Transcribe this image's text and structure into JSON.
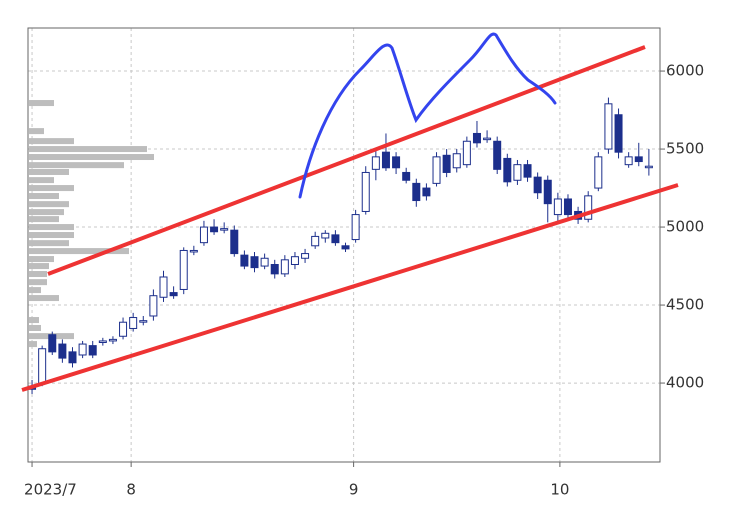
{
  "chart_data": {
    "type": "candlestick",
    "x": [
      0,
      1,
      2,
      3,
      4,
      5,
      6,
      7,
      8,
      9,
      10,
      11,
      12,
      13,
      14,
      15,
      16,
      17,
      18,
      19,
      20,
      21,
      22,
      23,
      24,
      25,
      26,
      27,
      28,
      29,
      30,
      31,
      32,
      33,
      34,
      35,
      36,
      37,
      38,
      39,
      40,
      41,
      42,
      43,
      44,
      45,
      46,
      47,
      48,
      49,
      50,
      51,
      52,
      53,
      54,
      55,
      56,
      57,
      58,
      59,
      60,
      61
    ],
    "open": [
      3980,
      4000,
      4310,
      4250,
      4200,
      4180,
      4240,
      4260,
      4270,
      4300,
      4350,
      4400,
      4430,
      4550,
      4580,
      4600,
      4850,
      4900,
      5000,
      4990,
      4980,
      4820,
      4810,
      4750,
      4760,
      4700,
      4760,
      4800,
      4880,
      4930,
      4950,
      4880,
      4920,
      5100,
      5370,
      5480,
      5450,
      5350,
      5280,
      5250,
      5280,
      5460,
      5380,
      5400,
      5600,
      5570,
      5550,
      5440,
      5300,
      5400,
      5320,
      5300,
      5080,
      5180,
      5100,
      5050,
      5250,
      5500,
      5720,
      5400,
      5450,
      5390
    ],
    "high": [
      4020,
      4240,
      4330,
      4280,
      4230,
      4270,
      4270,
      4290,
      4300,
      4420,
      4450,
      4430,
      4600,
      4720,
      4620,
      4870,
      4880,
      5040,
      5050,
      5030,
      5010,
      4850,
      4840,
      4830,
      4790,
      4820,
      4840,
      4860,
      4970,
      4980,
      4980,
      4900,
      5110,
      5390,
      5490,
      5600,
      5480,
      5380,
      5310,
      5280,
      5480,
      5500,
      5500,
      5580,
      5680,
      5620,
      5580,
      5470,
      5430,
      5430,
      5350,
      5330,
      5220,
      5210,
      5130,
      5230,
      5480,
      5830,
      5760,
      5480,
      5540,
      5500
    ],
    "low": [
      3930,
      3980,
      4180,
      4130,
      4100,
      4160,
      4160,
      4240,
      4250,
      4280,
      4330,
      4370,
      4400,
      4520,
      4540,
      4570,
      4820,
      4880,
      4950,
      4960,
      4810,
      4730,
      4710,
      4730,
      4670,
      4680,
      4730,
      4770,
      4860,
      4900,
      4880,
      4840,
      4900,
      5080,
      5300,
      5360,
      5340,
      5280,
      5130,
      5170,
      5260,
      5320,
      5350,
      5380,
      5510,
      5540,
      5340,
      5260,
      5270,
      5290,
      5180,
      5030,
      5030,
      5040,
      5020,
      5030,
      5230,
      5470,
      5440,
      5380,
      5390,
      5330
    ],
    "close": [
      3960,
      4220,
      4200,
      4160,
      4130,
      4250,
      4180,
      4270,
      4280,
      4390,
      4420,
      4400,
      4560,
      4680,
      4560,
      4850,
      4850,
      5000,
      4970,
      4990,
      4830,
      4750,
      4740,
      4800,
      4700,
      4790,
      4810,
      4830,
      4940,
      4960,
      4900,
      4860,
      5080,
      5350,
      5450,
      5380,
      5380,
      5300,
      5170,
      5200,
      5450,
      5350,
      5470,
      5550,
      5540,
      5570,
      5370,
      5290,
      5400,
      5320,
      5220,
      5150,
      5180,
      5080,
      5050,
      5200,
      5450,
      5790,
      5480,
      5450,
      5420,
      5390
    ],
    "up_color": "#ffffff",
    "down_color": "#1c2f8c",
    "edge_color": "#1c2f8c",
    "ylim": [
      3494,
      6276
    ],
    "yticks": [
      4000,
      4500,
      5000,
      5500,
      6000
    ],
    "xlim": [
      -0.4,
      62.1
    ],
    "xticks": [
      {
        "value": 0,
        "label": "2023/7"
      },
      {
        "value": 9.8,
        "label": "8"
      },
      {
        "value": 31.8,
        "label": "9"
      },
      {
        "value": 52.2,
        "label": "10"
      }
    ],
    "grid": true,
    "volume_profile": {
      "color": "#bdbdbd",
      "prices": [
        5795,
        5615,
        5551,
        5500,
        5449,
        5397,
        5353,
        5301,
        5250,
        5199,
        5147,
        5096,
        5051,
        5000,
        4949,
        4897,
        4846,
        4795,
        4750,
        4699,
        4647,
        4596,
        4545,
        4404,
        4353,
        4301,
        4250
      ],
      "values": [
        25,
        15,
        45,
        118,
        125,
        95,
        40,
        25,
        45,
        30,
        40,
        35,
        30,
        45,
        45,
        40,
        100,
        25,
        20,
        18,
        18,
        12,
        30,
        10,
        12,
        45,
        8
      ]
    }
  }
}
